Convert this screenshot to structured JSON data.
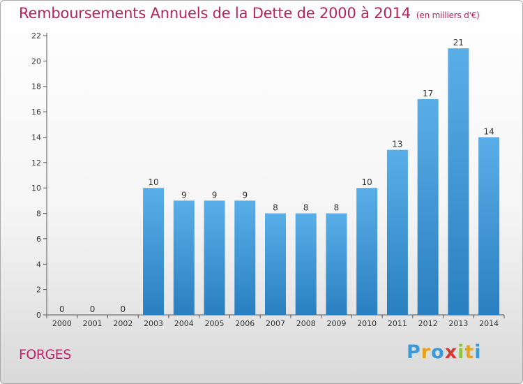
{
  "title": "Remboursements Annuels de la Dette de 2000 à 2014",
  "subtitle": "(en milliers d'€)",
  "town": "FORGES",
  "logo": {
    "letters": [
      "P",
      "r",
      "o",
      "x",
      "i",
      "t",
      "i"
    ],
    "colors": [
      "#3a9ad9",
      "#e8a21c",
      "#3a9ad9",
      "#d63a2f",
      "#8cc63f",
      "#e8a21c",
      "#3a9ad9"
    ]
  },
  "colors": {
    "bar_top": "#5aaee8",
    "bar_bottom": "#2a7fc0",
    "title": "#b4235a"
  },
  "chart_data": {
    "type": "bar",
    "categories": [
      "2000",
      "2001",
      "2002",
      "2003",
      "2004",
      "2005",
      "2006",
      "2007",
      "2008",
      "2009",
      "2010",
      "2011",
      "2012",
      "2013",
      "2014"
    ],
    "values": [
      0,
      0,
      0,
      10,
      9,
      9,
      9,
      8,
      8,
      8,
      10,
      13,
      17,
      21,
      14
    ],
    "ylim": [
      0,
      22
    ],
    "yticks": [
      0,
      2,
      4,
      6,
      8,
      10,
      12,
      14,
      16,
      18,
      20,
      22
    ],
    "grid": false,
    "legend": "none"
  }
}
